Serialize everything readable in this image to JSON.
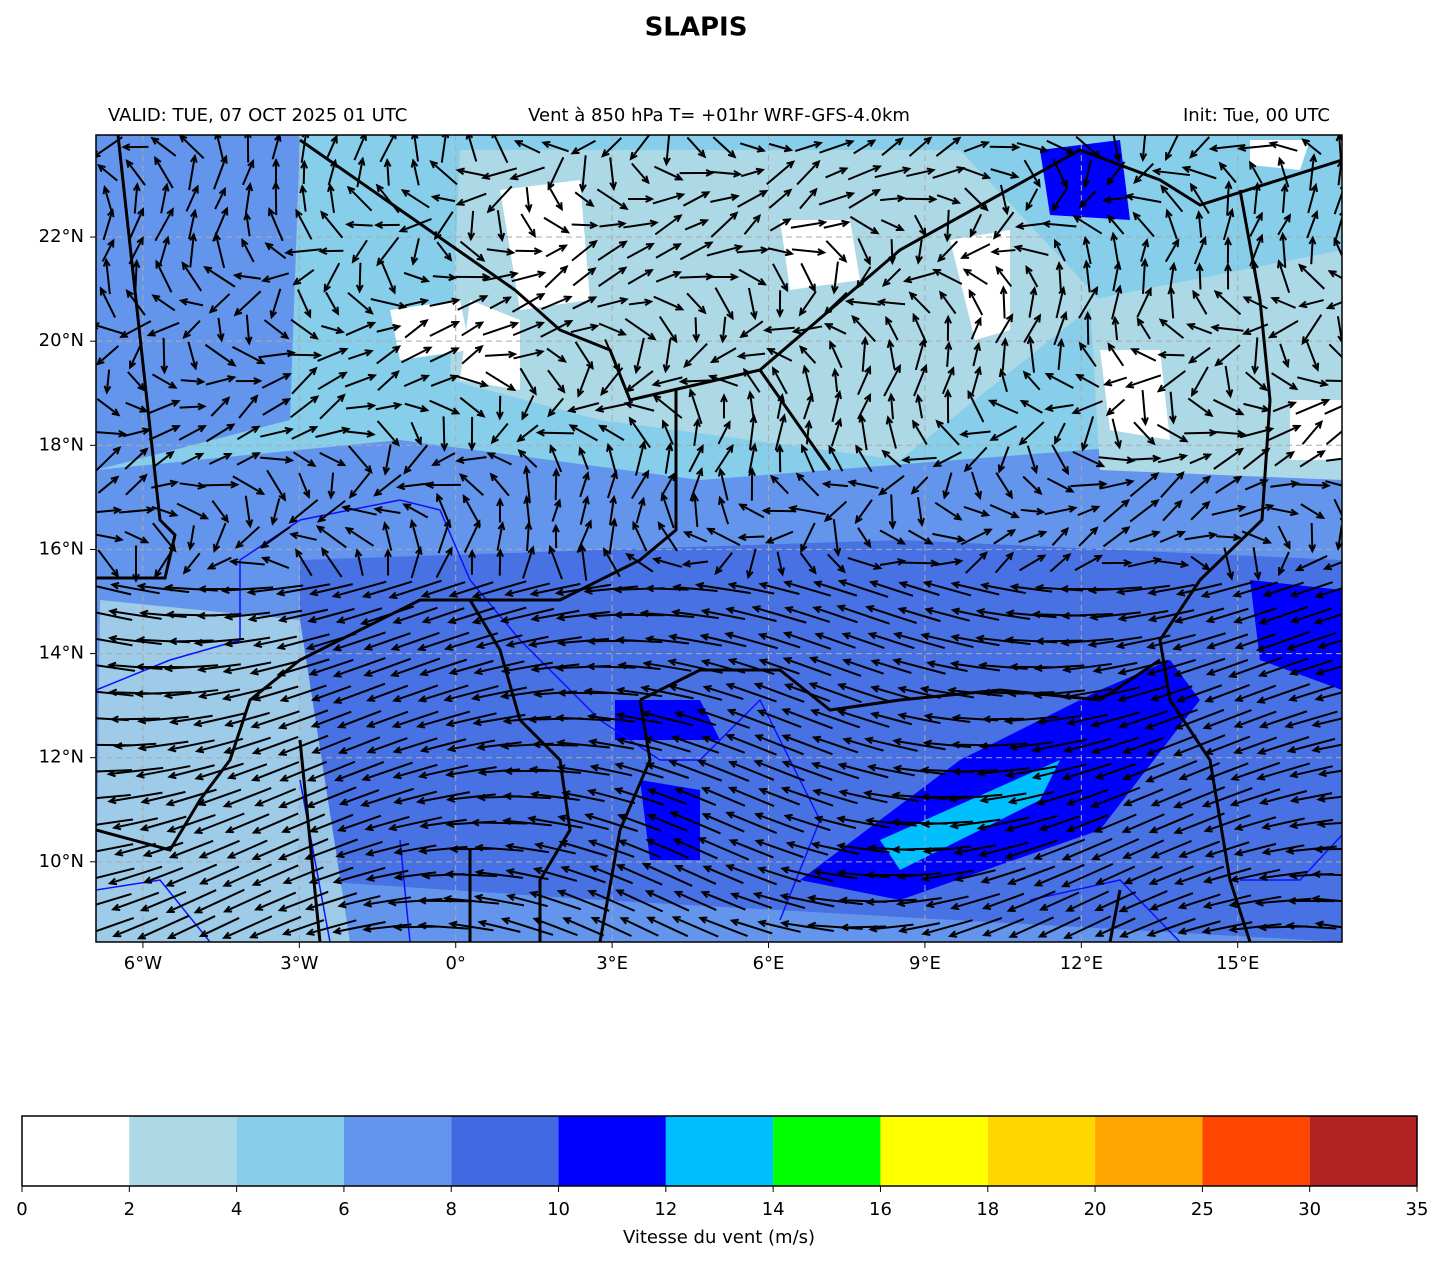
{
  "title": "SLAPIS",
  "header": {
    "valid": "VALID: TUE, 07 OCT 2025 01 UTC",
    "field": "Vent à 850 hPa T= +01hr  WRF-GFS-4.0km",
    "init": "Init: Tue, 00 UTC"
  },
  "map": {
    "xlim": [
      -6.9,
      17
    ],
    "ylim": [
      8.46,
      23.96
    ],
    "xticks": [
      {
        "value": -6,
        "label": "6°W"
      },
      {
        "value": -3,
        "label": "3°W"
      },
      {
        "value": 0,
        "label": "0°"
      },
      {
        "value": 3,
        "label": "3°E"
      },
      {
        "value": 6,
        "label": "6°E"
      },
      {
        "value": 9,
        "label": "9°E"
      },
      {
        "value": 12,
        "label": "12°E"
      },
      {
        "value": 15,
        "label": "15°E"
      }
    ],
    "yticks": [
      {
        "value": 10,
        "label": "10°N"
      },
      {
        "value": 12,
        "label": "12°N"
      },
      {
        "value": 14,
        "label": "14°N"
      },
      {
        "value": 16,
        "label": "16°N"
      },
      {
        "value": 18,
        "label": "18°N"
      },
      {
        "value": 20,
        "label": "20°N"
      },
      {
        "value": 22,
        "label": "22°N"
      }
    ]
  },
  "colorbar": {
    "label": "Vitesse du vent (m/s)",
    "bounds": [
      0,
      2,
      4,
      6,
      8,
      10,
      12,
      14,
      16,
      18,
      20,
      25,
      30,
      35
    ],
    "colors": [
      "#ffffff",
      "#add8e6",
      "#87ceeb",
      "#6495ed",
      "#4169e1",
      "#0000ff",
      "#00bfff",
      "#00ff00",
      "#ffff00",
      "#ffd700",
      "#ffa500",
      "#ff4500",
      "#b22222"
    ]
  }
}
